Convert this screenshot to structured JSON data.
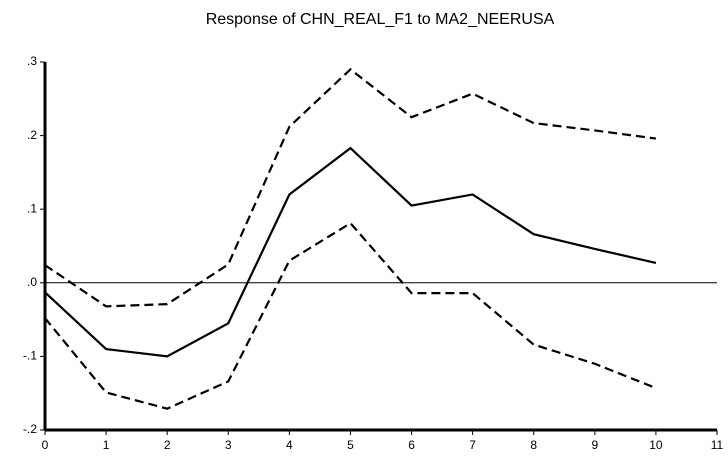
{
  "chart_data": {
    "type": "line",
    "title": "Response of CHN_REAL_F1 to MA2_NEERUSA",
    "x": [
      0,
      1,
      2,
      3,
      4,
      5,
      6,
      7,
      8,
      9,
      10
    ],
    "series": [
      {
        "color": "#000000",
        "style": "solid",
        "values": [
          -0.013,
          -0.09,
          -0.1,
          -0.055,
          0.12,
          0.183,
          0.105,
          0.12,
          0.066,
          0.046,
          0.027
        ]
      },
      {
        "color": "#000000",
        "style": "dashed",
        "values": [
          0.024,
          -0.032,
          -0.029,
          0.025,
          0.212,
          0.29,
          0.225,
          0.257,
          0.217,
          0.207,
          0.196
        ]
      },
      {
        "color": "#000000",
        "style": "dashed",
        "values": [
          -0.048,
          -0.149,
          -0.171,
          -0.134,
          0.03,
          0.081,
          -0.014,
          -0.014,
          -0.084,
          -0.11,
          -0.143
        ]
      }
    ],
    "xlim": [
      0,
      11
    ],
    "xticks": [
      0,
      1,
      2,
      3,
      4,
      5,
      6,
      7,
      8,
      9,
      10,
      11
    ],
    "ylim": [
      -0.2,
      0.3
    ],
    "yticks": [
      {
        "value": -0.2,
        "label": "-.2"
      },
      {
        "value": -0.1,
        "label": "-.1"
      },
      {
        "value": 0,
        "label": ".0"
      },
      {
        "value": 0.1,
        "label": ".1"
      },
      {
        "value": 0.2,
        "label": ".2"
      },
      {
        "value": 0.3,
        "label": ".3"
      }
    ],
    "zero_line": true
  }
}
